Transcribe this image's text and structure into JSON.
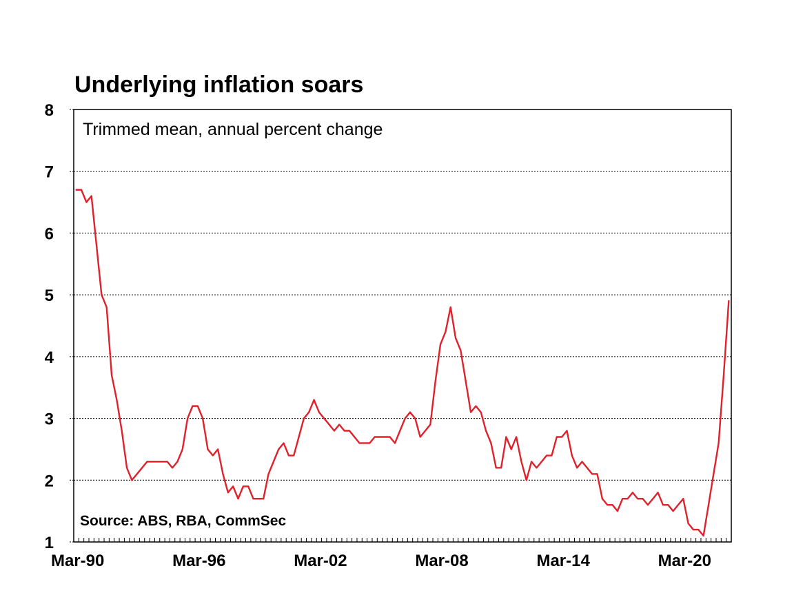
{
  "chart_data": {
    "type": "line",
    "title": "Underlying inflation soars",
    "subtitle": "Trimmed mean, annual percent change",
    "source": "Source: ABS, RBA, CommSec",
    "xlabel": "",
    "ylabel": "",
    "ylim": [
      1,
      8
    ],
    "yticks": [
      1,
      2,
      3,
      4,
      5,
      6,
      7,
      8
    ],
    "xlim": [
      "Mar-90",
      "Jun-22"
    ],
    "xtick_labels": [
      "Mar-90",
      "Mar-96",
      "Mar-02",
      "Mar-08",
      "Mar-14",
      "Mar-20"
    ],
    "grid": "horizontal dotted",
    "line_color": "#E0202A",
    "series": [
      {
        "values": [
          6.7,
          6.7,
          6.5,
          6.6,
          5.8,
          5.0,
          4.8,
          3.7,
          3.3,
          2.8,
          2.2,
          2.0,
          2.1,
          2.2,
          2.3,
          2.3,
          2.3,
          2.3,
          2.3,
          2.2,
          2.3,
          2.5,
          3.0,
          3.2,
          3.2,
          3.0,
          2.5,
          2.4,
          2.5,
          2.1,
          1.8,
          1.9,
          1.7,
          1.9,
          1.9,
          1.7,
          1.7,
          1.7,
          2.1,
          2.3,
          2.5,
          2.6,
          2.4,
          2.4,
          2.7,
          3.0,
          3.1,
          3.3,
          3.1,
          3.0,
          2.9,
          2.8,
          2.9,
          2.8,
          2.8,
          2.7,
          2.6,
          2.6,
          2.6,
          2.7,
          2.7,
          2.7,
          2.7,
          2.6,
          2.8,
          3.0,
          3.1,
          3.0,
          2.7,
          2.8,
          2.9,
          3.6,
          4.2,
          4.4,
          4.8,
          4.3,
          4.1,
          3.6,
          3.1,
          3.2,
          3.1,
          2.8,
          2.6,
          2.2,
          2.2,
          2.7,
          2.5,
          2.7,
          2.3,
          2.0,
          2.3,
          2.2,
          2.3,
          2.4,
          2.4,
          2.7,
          2.7,
          2.8,
          2.4,
          2.2,
          2.3,
          2.2,
          2.1,
          2.1,
          1.7,
          1.6,
          1.6,
          1.5,
          1.7,
          1.7,
          1.8,
          1.7,
          1.7,
          1.6,
          1.7,
          1.8,
          1.6,
          1.6,
          1.5,
          1.6,
          1.7,
          1.3,
          1.2,
          1.2,
          1.1,
          1.6,
          2.1,
          2.6,
          3.7,
          4.9
        ]
      }
    ]
  }
}
